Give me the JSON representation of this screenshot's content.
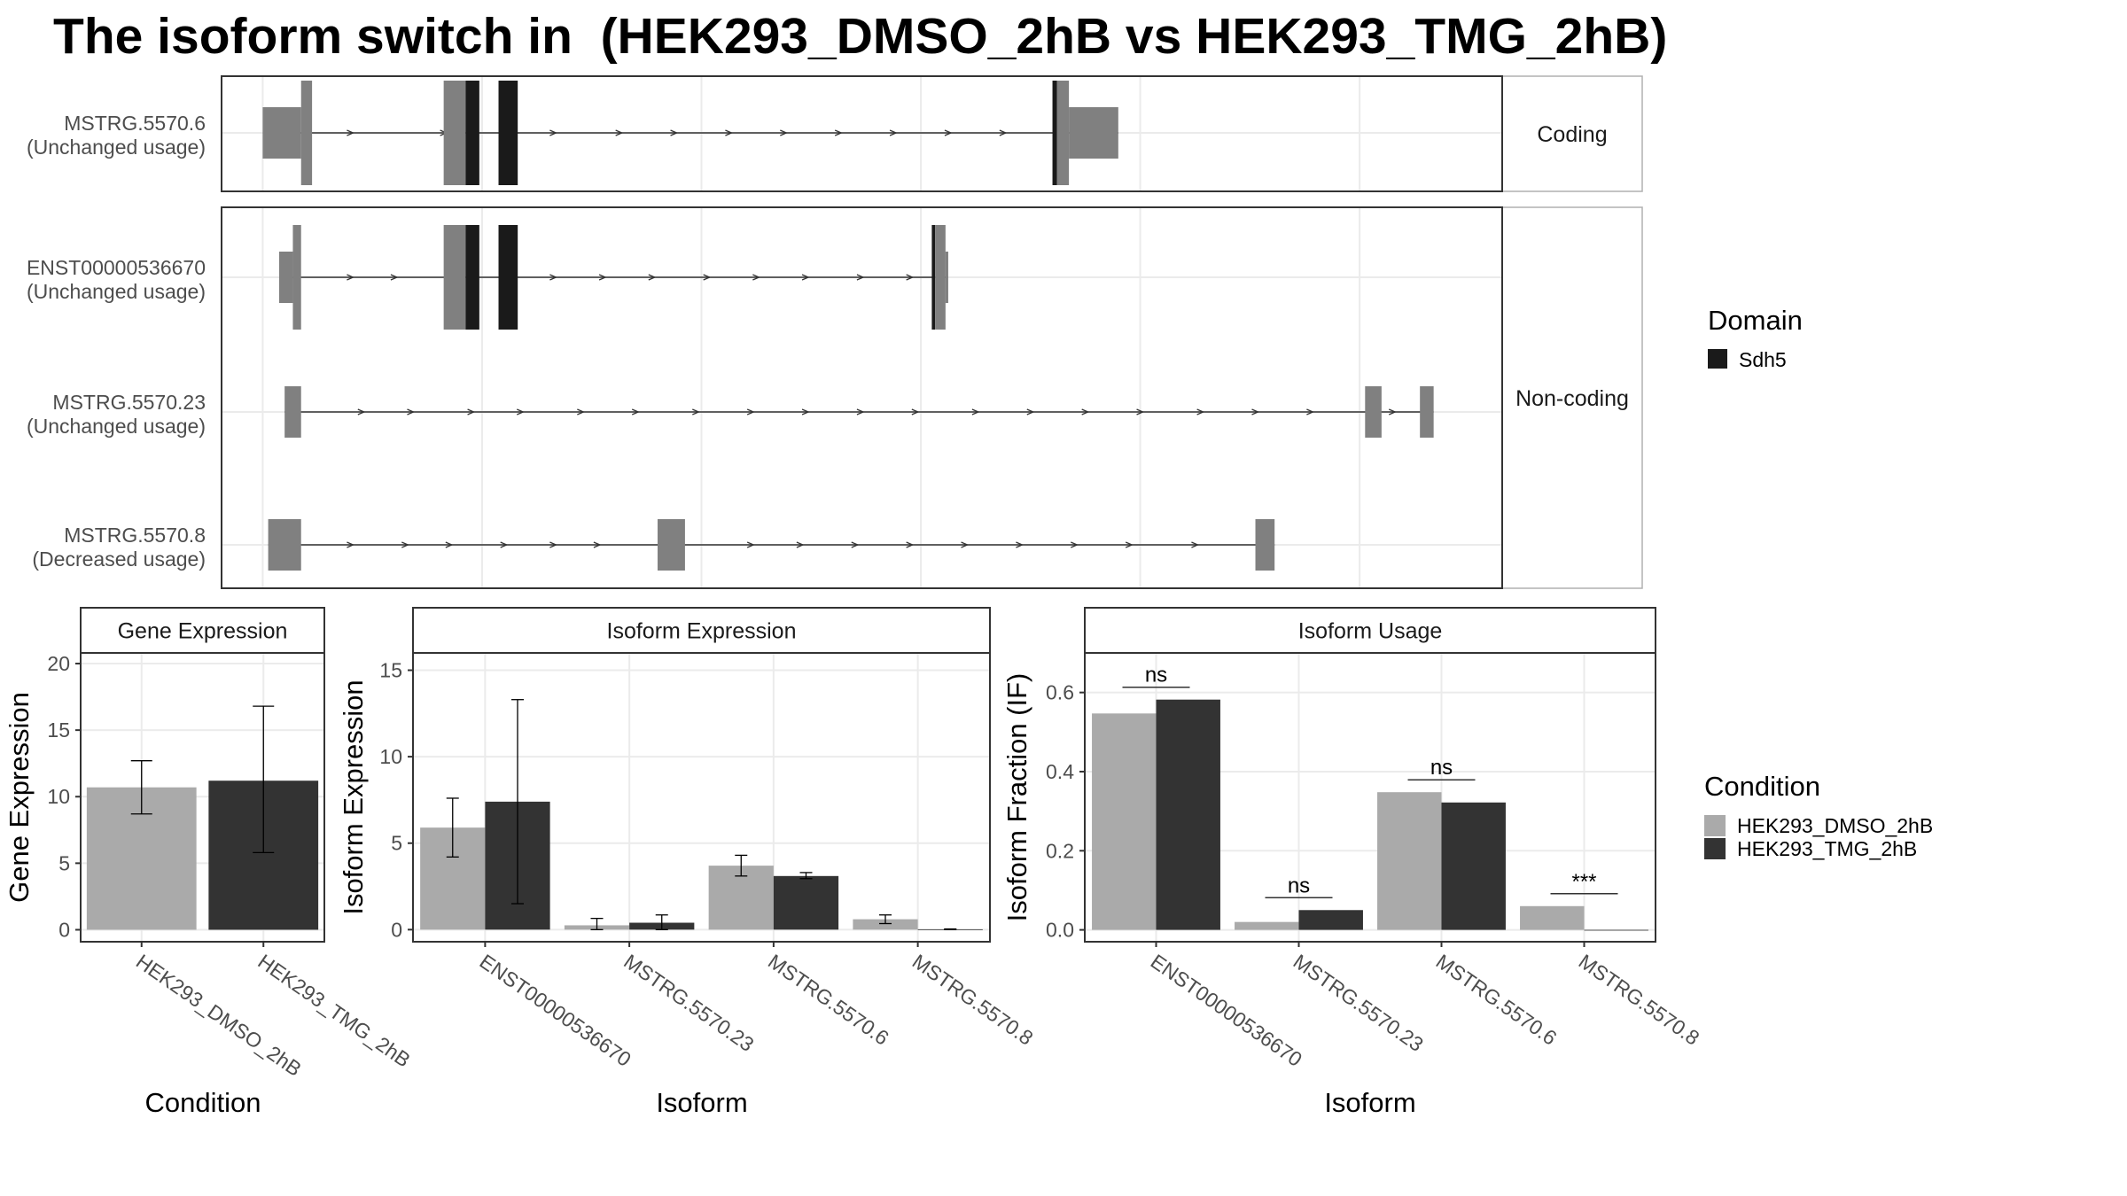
{
  "title": "The isoform switch in  (HEK293_DMSO_2hB vs HEK293_TMG_2hB)",
  "colors": {
    "exon": "#808080",
    "domain": "#1a1a1a",
    "intron": "#333333",
    "dmso": "#aaaaaa",
    "tmg": "#333333",
    "grid": "#ebebeb",
    "frame": "#333333",
    "strip_fill": "#ffffff"
  },
  "structure": {
    "panels": [
      {
        "label": "Coding",
        "isoforms": [
          {
            "id": "MSTRG.5570.6",
            "usage": "(Unchanged usage)",
            "exons": [
              [
                0,
                7,
                "utr"
              ],
              [
                7,
                9,
                "cds"
              ],
              [
                33,
                37,
                "cds"
              ],
              [
                37,
                39.5,
                "domain"
              ],
              [
                43,
                46.5,
                "domain"
              ],
              [
                144,
                144.8,
                "domain"
              ],
              [
                144.8,
                147,
                "cds"
              ],
              [
                147,
                156,
                "utr"
              ]
            ],
            "arrows": [
              16,
              33,
              53,
              65,
              75,
              85,
              95,
              105,
              115,
              125,
              135
            ]
          }
        ]
      },
      {
        "label": "Non-coding",
        "isoforms": [
          {
            "id": "ENST00000536670",
            "usage": "(Unchanged usage)",
            "exons": [
              [
                3,
                5.5,
                "utr"
              ],
              [
                5.5,
                7,
                "cds"
              ],
              [
                33,
                37,
                "cds"
              ],
              [
                37,
                39.5,
                "domain"
              ],
              [
                43,
                46.5,
                "domain"
              ],
              [
                122,
                122.6,
                "domain"
              ],
              [
                122.6,
                124.5,
                "cds"
              ],
              [
                124.5,
                125,
                "utr"
              ]
            ],
            "arrows": [
              16,
              24,
              53,
              62,
              71,
              81,
              90,
              99,
              109,
              118
            ]
          },
          {
            "id": "MSTRG.5570.23",
            "usage": "(Unchanged usage)",
            "exons": [
              [
                4,
                7,
                "utr"
              ],
              [
                201,
                204,
                "utr"
              ],
              [
                211,
                213.5,
                "utr"
              ]
            ],
            "arrows": [
              18,
              27,
              38,
              47,
              58,
              68,
              79,
              89,
              99,
              109,
              119,
              130,
              140,
              150,
              160,
              171,
              181,
              191,
              206
            ]
          },
          {
            "id": "MSTRG.5570.8",
            "usage": "(Decreased usage)",
            "exons": [
              [
                1,
                7,
                "utr"
              ],
              [
                72,
                77,
                "utr"
              ],
              [
                181,
                184.5,
                "utr"
              ]
            ],
            "arrows": [
              16,
              26,
              34,
              44,
              53,
              61,
              89,
              98,
              108,
              118,
              128,
              138,
              148,
              158,
              170
            ]
          }
        ]
      }
    ]
  },
  "legend_domain": {
    "title": "Domain",
    "items": [
      "Sdh5"
    ]
  },
  "legend_condition": {
    "title": "Condition",
    "items": [
      "HEK293_DMSO_2hB",
      "HEK293_TMG_2hB"
    ]
  },
  "chart_data": [
    {
      "type": "bar",
      "title": "Gene Expression",
      "xlabel": "Condition",
      "ylabel": "Gene Expression",
      "categories": [
        "HEK293_DMSO_2hB",
        "HEK293_TMG_2hB"
      ],
      "values": [
        10.7,
        11.2
      ],
      "error_low": [
        8.7,
        5.8
      ],
      "error_high": [
        12.7,
        16.8
      ],
      "ylim": [
        -0.9,
        20.8
      ],
      "yticks": [
        0,
        5,
        10,
        15,
        20
      ]
    },
    {
      "type": "bar",
      "title": "Isoform Expression",
      "xlabel": "Isoform",
      "ylabel": "Isoform Expression",
      "categories": [
        "ENST00000536670",
        "MSTRG.5570.23",
        "MSTRG.5570.6",
        "MSTRG.5570.8"
      ],
      "series": [
        {
          "name": "HEK293_DMSO_2hB",
          "values": [
            5.9,
            0.25,
            3.7,
            0.6
          ],
          "error_low": [
            4.2,
            0.0,
            3.1,
            0.35
          ],
          "error_high": [
            7.6,
            0.65,
            4.3,
            0.85
          ]
        },
        {
          "name": "HEK293_TMG_2hB",
          "values": [
            7.4,
            0.4,
            3.1,
            0.02
          ],
          "error_low": [
            1.5,
            0.0,
            2.95,
            0.0
          ],
          "error_high": [
            13.3,
            0.85,
            3.3,
            0.04
          ]
        }
      ],
      "ylim": [
        -0.7,
        16.0
      ],
      "yticks": [
        0,
        5,
        10,
        15
      ]
    },
    {
      "type": "bar",
      "title": "Isoform Usage",
      "xlabel": "Isoform",
      "ylabel": "Isoform Fraction (IF)",
      "categories": [
        "ENST00000536670",
        "MSTRG.5570.23",
        "MSTRG.5570.6",
        "MSTRG.5570.8"
      ],
      "series": [
        {
          "name": "HEK293_DMSO_2hB",
          "values": [
            0.547,
            0.02,
            0.348,
            0.06
          ]
        },
        {
          "name": "HEK293_TMG_2hB",
          "values": [
            0.582,
            0.05,
            0.322,
            0.0
          ]
        }
      ],
      "significance": [
        "ns",
        "ns",
        "ns",
        "***"
      ],
      "ylim": [
        -0.03,
        0.7
      ],
      "yticks": [
        "0.0",
        "0.2",
        "0.4",
        "0.6"
      ]
    }
  ]
}
